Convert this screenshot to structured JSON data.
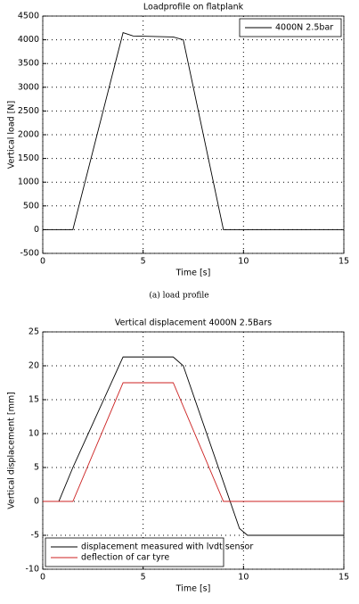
{
  "chart_data": [
    {
      "type": "line",
      "title": "Loadprofile on flatplank",
      "xlabel": "Time [s]",
      "ylabel": "Vertical load [N]",
      "xlim": [
        0,
        15
      ],
      "ylim": [
        -500,
        4500
      ],
      "xticks": [
        0,
        5,
        10,
        15
      ],
      "yticks": [
        -500,
        0,
        500,
        1000,
        1500,
        2000,
        2500,
        3000,
        3500,
        4000,
        4500
      ],
      "grid": true,
      "legend": "upper right",
      "series": [
        {
          "name": "4000N 2.5bar",
          "color": "#000000",
          "x": [
            0,
            1.5,
            4,
            4.5,
            6.5,
            7,
            9,
            15
          ],
          "values": [
            0,
            0,
            4150,
            4080,
            4060,
            4000,
            0,
            0
          ]
        }
      ]
    },
    {
      "type": "line",
      "title": "Vertical displacement 4000N 2.5Bars",
      "xlabel": "Time [s]",
      "ylabel": "Vertical displacement [mm]",
      "xlim": [
        0,
        15
      ],
      "ylim": [
        -10,
        25
      ],
      "xticks": [
        0,
        5,
        10,
        15
      ],
      "yticks": [
        -10,
        -5,
        0,
        5,
        10,
        15,
        20,
        25
      ],
      "grid": true,
      "legend": "lower left",
      "series": [
        {
          "name": "displacement measured with lvdt sensor",
          "color": "#000000",
          "x": [
            0,
            0.8,
            1.5,
            4,
            6.5,
            7,
            9.8,
            10.2,
            15
          ],
          "values": [
            0,
            0,
            5,
            21.3,
            21.3,
            20,
            -4,
            -5,
            -5
          ]
        },
        {
          "name": "deflection of car tyre",
          "color": "#cc2222",
          "x": [
            0,
            1.5,
            4,
            6.5,
            9,
            15
          ],
          "values": [
            0,
            0,
            17.5,
            17.5,
            0,
            0
          ]
        }
      ]
    }
  ],
  "caption": "(a) load profile"
}
